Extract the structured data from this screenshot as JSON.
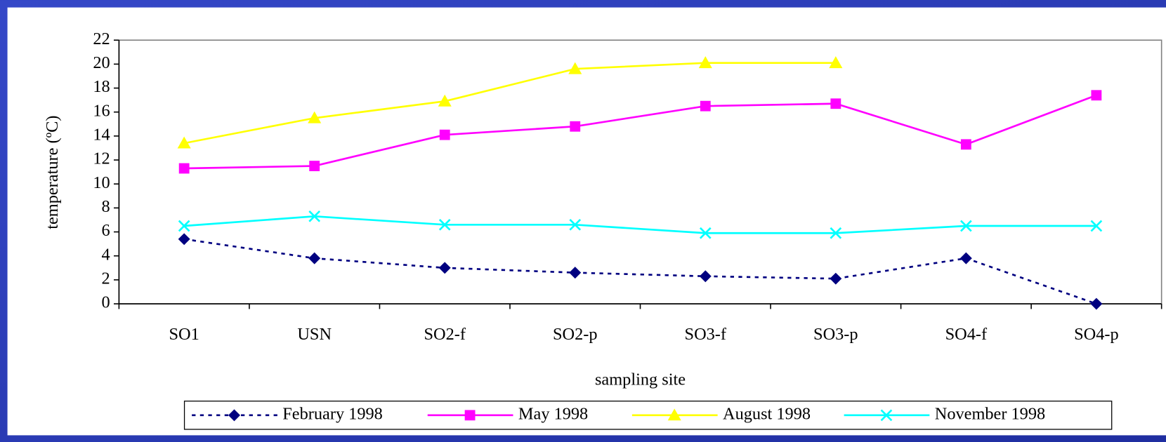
{
  "chart_data": {
    "type": "line",
    "x_label": "sampling site",
    "y_label": "temperature (ºC)",
    "categories": [
      "SO1",
      "USN",
      "SO2-f",
      "SO2-p",
      "SO3-f",
      "SO3-p",
      "SO4-f",
      "SO4-p"
    ],
    "series": [
      {
        "name": "February 1998",
        "color": "#000080",
        "marker": "diamond",
        "dashed": true,
        "values": [
          5.4,
          3.8,
          3.0,
          2.6,
          2.3,
          2.1,
          3.8,
          0
        ]
      },
      {
        "name": "May 1998",
        "color": "#ff00ff",
        "marker": "square",
        "dashed": false,
        "values": [
          11.3,
          11.5,
          14.1,
          14.8,
          16.5,
          16.7,
          13.3,
          17.4
        ]
      },
      {
        "name": "August 1998",
        "color": "#ffff00",
        "marker": "triangle",
        "dashed": false,
        "values": [
          13.4,
          15.5,
          16.9,
          19.6,
          20.1,
          20.1,
          null,
          null
        ]
      },
      {
        "name": "November 1998",
        "color": "#00ffff",
        "marker": "x",
        "dashed": false,
        "values": [
          6.5,
          7.3,
          6.6,
          6.6,
          5.9,
          5.9,
          6.5,
          6.5
        ]
      }
    ],
    "ylim": [
      0,
      22
    ],
    "yticks": [
      0,
      2,
      4,
      6,
      8,
      10,
      12,
      14,
      16,
      18,
      20,
      22
    ],
    "legend": "bottom",
    "grid": false
  }
}
